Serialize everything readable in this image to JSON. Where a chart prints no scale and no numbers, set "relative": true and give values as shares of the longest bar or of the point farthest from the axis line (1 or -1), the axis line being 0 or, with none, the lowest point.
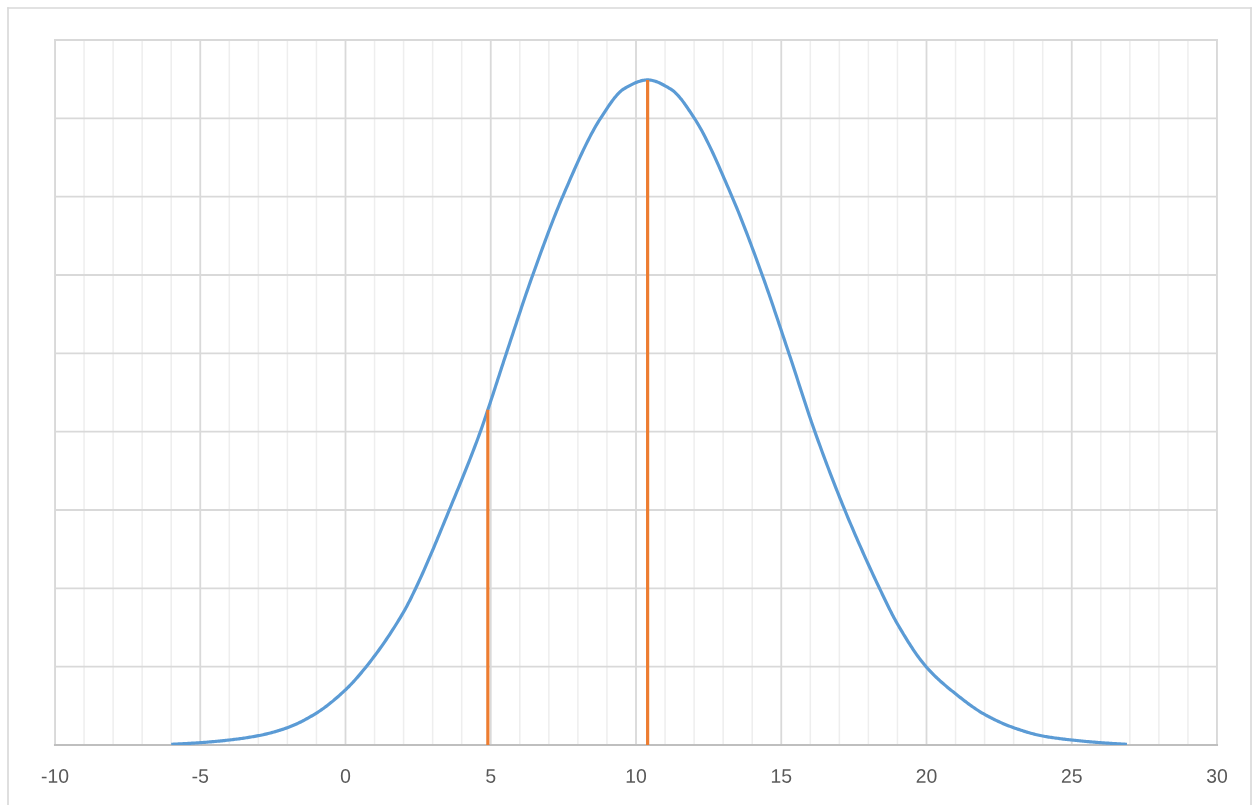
{
  "chart_data": {
    "type": "line",
    "relative": true,
    "tick_labels": "x",
    "grid": true,
    "xlim": [
      -10,
      30
    ],
    "xticks": [
      -10,
      {
        "value": -9,
        "label": null
      },
      {
        "value": -8,
        "label": null
      },
      {
        "value": -7,
        "label": null
      },
      {
        "value": -6,
        "label": null
      },
      -5,
      {
        "value": -4,
        "label": null
      },
      {
        "value": -3,
        "label": null
      },
      {
        "value": -2,
        "label": null
      },
      {
        "value": -1,
        "label": null
      },
      0,
      {
        "value": 1,
        "label": null
      },
      {
        "value": 2,
        "label": null
      },
      {
        "value": 3,
        "label": null
      },
      {
        "value": 4,
        "label": null
      },
      5,
      {
        "value": 6,
        "label": null
      },
      {
        "value": 7,
        "label": null
      },
      {
        "value": 8,
        "label": null
      },
      {
        "value": 9,
        "label": null
      },
      10,
      {
        "value": 11,
        "label": null
      },
      {
        "value": 12,
        "label": null
      },
      {
        "value": 13,
        "label": null
      },
      {
        "value": 14,
        "label": null
      },
      15,
      {
        "value": 16,
        "label": null
      },
      {
        "value": 17,
        "label": null
      },
      {
        "value": 18,
        "label": null
      },
      {
        "value": 19,
        "label": null
      },
      20,
      {
        "value": 21,
        "label": null
      },
      {
        "value": 22,
        "label": null
      },
      {
        "value": 23,
        "label": null
      },
      {
        "value": 24,
        "label": null
      },
      25,
      {
        "value": 26,
        "label": null
      },
      {
        "value": 27,
        "label": null
      },
      {
        "value": 28,
        "label": null
      },
      {
        "value": 29,
        "label": null
      },
      30
    ],
    "series": [
      {
        "color": "#5b9bd5",
        "x": [
          -6,
          -5,
          -4,
          -3,
          -2,
          -1,
          0,
          0.7,
          2,
          2.41,
          3.57,
          4.65,
          4.9,
          5.53,
          6.44,
          7.48,
          8.79,
          9.6,
          10.4,
          11.2,
          12,
          13.3,
          14.35,
          15.27,
          16.15,
          17.19,
          18.4,
          19,
          20,
          21,
          22,
          23,
          24,
          25,
          26,
          26.9
        ],
        "values": [
          0.001,
          0.0035,
          0.0075,
          0.014,
          0.026,
          0.048,
          0.083,
          0.117,
          0.2,
          0.235,
          0.353,
          0.472,
          0.504,
          0.588,
          0.706,
          0.825,
          0.943,
          0.987,
          1,
          0.986,
          0.943,
          0.825,
          0.706,
          0.588,
          0.472,
          0.353,
          0.234,
          0.182,
          0.117,
          0.077,
          0.046,
          0.026,
          0.0135,
          0.0075,
          0.0035,
          0.001
        ]
      },
      {
        "color": "#ed7d31",
        "x": [
          4.9,
          4.9
        ],
        "values": [
          0,
          0.504
        ]
      },
      {
        "color": "#ed7d31",
        "x": [
          10.4,
          10.4
        ],
        "values": [
          0,
          1
        ]
      }
    ]
  }
}
